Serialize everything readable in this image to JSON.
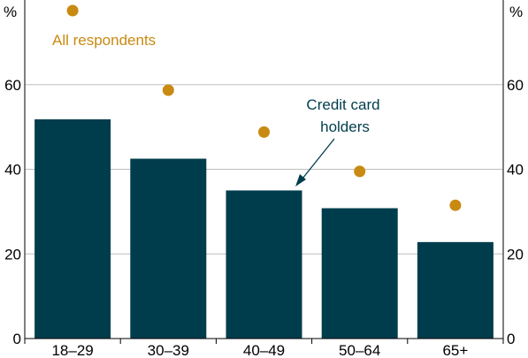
{
  "chart_data": {
    "type": "bar",
    "categories": [
      "18–29",
      "30–39",
      "40–49",
      "50–64",
      "65+"
    ],
    "series": [
      {
        "name": "Credit card holders",
        "mark": "bar",
        "values": [
          51.8,
          42.5,
          35.0,
          30.8,
          22.8
        ],
        "color": "#003d4c"
      },
      {
        "name": "All respondents",
        "mark": "dot",
        "values": [
          77.5,
          58.7,
          48.8,
          39.5,
          31.5
        ],
        "color": "#c98a12"
      }
    ],
    "ylim": [
      0,
      80
    ],
    "yticks": [
      0,
      20,
      40,
      60
    ],
    "y_unit": "%",
    "grid": true,
    "annotations": {
      "all_respondents": "All respondents",
      "credit_card_line1": "Credit card",
      "credit_card_line2": "holders"
    }
  }
}
